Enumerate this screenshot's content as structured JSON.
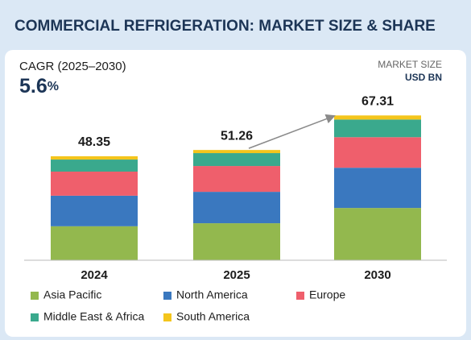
{
  "chart_data": {
    "type": "stacked_bar",
    "title": "COMMERCIAL REFRIGERATION: MARKET SIZE & SHARE",
    "cagr_label": "CAGR (2025–2030)",
    "cagr_value": "5.6",
    "cagr_unit": "%",
    "unit_label_1": "MARKET SIZE",
    "unit_label_2": "USD BN",
    "categories": [
      "2024",
      "2025",
      "2030"
    ],
    "totals": [
      48.35,
      51.26,
      67.31
    ],
    "series": [
      {
        "name": "Asia Pacific",
        "color": "#93b84e",
        "values": [
          15.8,
          17.2,
          24.3
        ]
      },
      {
        "name": "North America",
        "color": "#3a78bf",
        "values": [
          14.2,
          14.6,
          18.7
        ]
      },
      {
        "name": "Europe",
        "color": "#ef5f6c",
        "values": [
          11.2,
          12.0,
          14.2
        ]
      },
      {
        "name": "Middle East & Africa",
        "color": "#3aa98d",
        "values": [
          5.6,
          6.0,
          8.2
        ]
      },
      {
        "name": "South America",
        "color": "#f4c51c",
        "values": [
          1.55,
          1.46,
          1.91
        ]
      }
    ]
  }
}
